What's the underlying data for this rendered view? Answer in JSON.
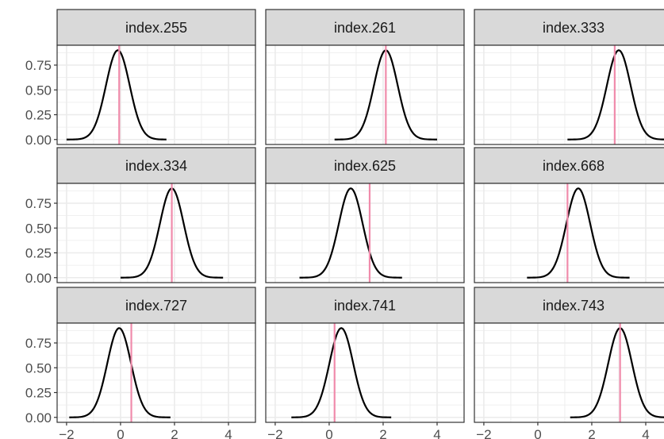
{
  "chart_data": {
    "type": "line",
    "facet_layout": {
      "rows": 3,
      "cols": 3,
      "shared_axes": true
    },
    "xlim": [
      -2.35,
      5.0
    ],
    "ylim": [
      -0.05,
      0.95
    ],
    "x_ticks": [
      -2,
      0,
      2,
      4
    ],
    "x_tick_labels": [
      "−2",
      "0",
      "2",
      "4"
    ],
    "y_ticks": [
      0.0,
      0.25,
      0.5,
      0.75
    ],
    "y_tick_labels": [
      "0.00",
      "0.25",
      "0.50",
      "0.75"
    ],
    "grid": true,
    "sd": 0.44,
    "peak": 0.9,
    "density_color": "#000000",
    "marker_color": "#f08bab",
    "facets": [
      {
        "label": "index.255",
        "mean": -0.1,
        "range": [
          -2.0,
          1.7
        ],
        "marker_x": -0.05
      },
      {
        "label": "index.261",
        "mean": 2.1,
        "range": [
          0.2,
          4.0
        ],
        "marker_x": 2.1
      },
      {
        "label": "index.333",
        "mean": 3.0,
        "range": [
          1.1,
          4.9
        ],
        "marker_x": 2.85
      },
      {
        "label": "index.334",
        "mean": 1.9,
        "range": [
          0.0,
          3.8
        ],
        "marker_x": 1.9
      },
      {
        "label": "index.625",
        "mean": 0.8,
        "range": [
          -1.1,
          2.7
        ],
        "marker_x": 1.5
      },
      {
        "label": "index.668",
        "mean": 1.5,
        "range": [
          -0.4,
          3.4
        ],
        "marker_x": 1.1
      },
      {
        "label": "index.727",
        "mean": -0.05,
        "range": [
          -1.9,
          1.85
        ],
        "marker_x": 0.4
      },
      {
        "label": "index.741",
        "mean": 0.45,
        "range": [
          -1.4,
          2.3
        ],
        "marker_x": 0.2
      },
      {
        "label": "index.743",
        "mean": 3.05,
        "range": [
          1.2,
          4.9
        ],
        "marker_x": 3.05
      }
    ]
  }
}
